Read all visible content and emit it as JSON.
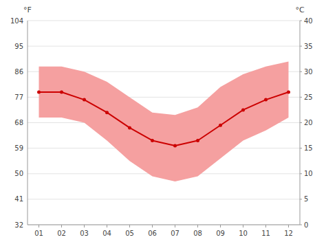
{
  "chart_data": {
    "type": "line",
    "ylabel": "°F",
    "y2label": "°C",
    "categories": [
      "01",
      "02",
      "03",
      "04",
      "05",
      "06",
      "07",
      "08",
      "09",
      "10",
      "11",
      "12"
    ],
    "series": [
      {
        "type": "band",
        "color": "#f5a0a0",
        "low": [
          69.8,
          69.8,
          68.0,
          61.7,
          54.5,
          49.1,
          47.3,
          49.1,
          55.4,
          61.7,
          65.3,
          69.8
        ],
        "high": [
          87.8,
          87.8,
          86.0,
          82.4,
          77.0,
          71.6,
          70.7,
          73.4,
          80.6,
          85.1,
          87.8,
          89.6
        ]
      },
      {
        "type": "line",
        "color": "#cc0000",
        "marker": "circle",
        "values": [
          78.8,
          78.8,
          76.1,
          71.6,
          66.2,
          61.7,
          59.9,
          61.7,
          67.1,
          72.5,
          76.1,
          78.8
        ]
      }
    ],
    "ylim": [
      32,
      104
    ],
    "yticks": [
      32,
      41,
      50,
      59,
      68,
      77,
      86,
      95,
      104
    ],
    "y2lim": [
      0,
      40
    ],
    "y2ticks": [
      0,
      5,
      10,
      15,
      20,
      25,
      30,
      35,
      40
    ],
    "grid": true
  }
}
